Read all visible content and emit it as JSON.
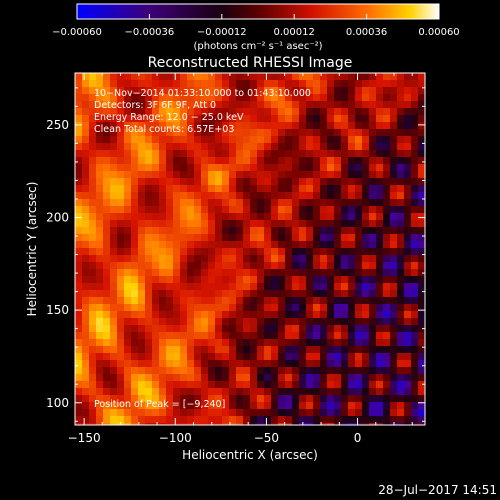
{
  "chart_data": {
    "type": "heatmap",
    "title": "Reconstructed RHESSI Image",
    "xlabel": "Heliocentric X (arcsec)",
    "ylabel": "Heliocentric Y (arcsec)",
    "xlim": [
      -155,
      37
    ],
    "ylim": [
      88,
      278
    ],
    "x_ticks": [
      -150,
      -100,
      -50,
      0
    ],
    "x_tick_labels": [
      "−150",
      "−100",
      "−50",
      "0"
    ],
    "y_ticks": [
      100,
      150,
      200,
      250
    ],
    "y_tick_labels": [
      "100",
      "150",
      "200",
      "250"
    ],
    "colorbar": {
      "range": [
        -0.0006,
        0.0006
      ],
      "ticks": [
        -0.0006,
        -0.00036,
        -0.00012,
        0.00012,
        0.00036,
        0.0006
      ],
      "tick_labels": [
        "−0.00060",
        "−0.00036",
        "−0.00012",
        "0.00012",
        "0.00036",
        "0.00060"
      ],
      "unit_label": "(photons cm⁻² s⁻¹ asec⁻²)"
    },
    "annotations": [
      "10−Nov−2014 01:33:10.000 to 01:43:10.000",
      "Detectors: 3F 6F 9F, Att 0",
      "Energy Range: 12.0 − 25.0 keV",
      "Clean     Total counts: 6.57E+03"
    ],
    "peak_label": "Position of Peak = [−9,240]",
    "colors": {
      "background": "#000000",
      "colormap": [
        "#0000ff",
        "#3c0064",
        "#000000",
        "#b40000",
        "#ff5000",
        "#ffc800",
        "#ffffff"
      ]
    }
  },
  "footer": {
    "date": "28−Jul−2017 14:51"
  }
}
